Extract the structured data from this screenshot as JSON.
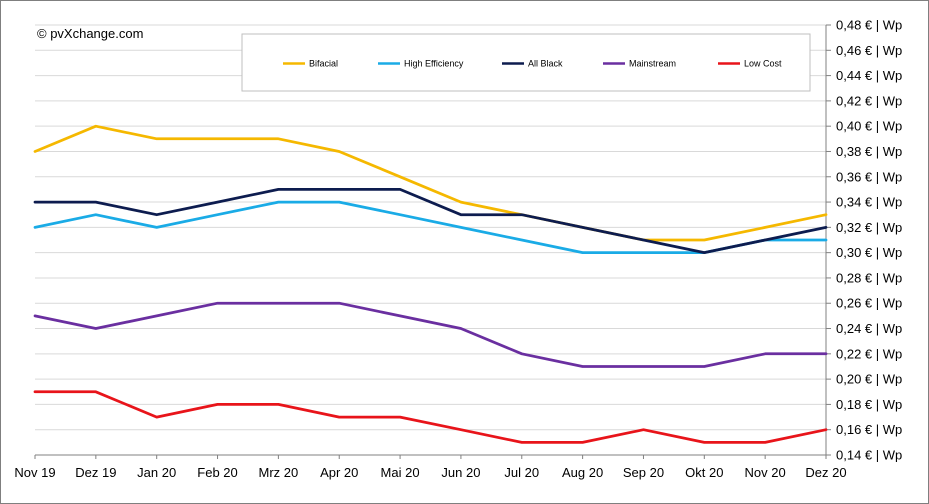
{
  "credit": "© pvXchange.com",
  "chart_data": {
    "type": "line",
    "title": "",
    "xlabel": "",
    "ylabel": "",
    "categories": [
      "Nov 19",
      "Dez 19",
      "Jan 20",
      "Feb 20",
      "Mrz 20",
      "Apr 20",
      "Mai 20",
      "Jun 20",
      "Jul 20",
      "Aug 20",
      "Sep 20",
      "Okt 20",
      "Nov 20",
      "Dez 20"
    ],
    "ylim": [
      0.14,
      0.48
    ],
    "ytick_step": 0.02,
    "y_tick_labels": [
      "0,14 € | Wp",
      "0,16 € | Wp",
      "0,18 € | Wp",
      "0,20 € | Wp",
      "0,22 € | Wp",
      "0,24 € | Wp",
      "0,26 € | Wp",
      "0,28 € | Wp",
      "0,30 € | Wp",
      "0,32 € | Wp",
      "0,34 € | Wp",
      "0,36 € | Wp",
      "0,38 € | Wp",
      "0,40 € | Wp",
      "0,42 € | Wp",
      "0,44 € | Wp",
      "0,46 € | Wp",
      "0,48 € | Wp"
    ],
    "y_axis_side": "right",
    "grid": true,
    "legend_position": "top",
    "series": [
      {
        "name": "Bifacial",
        "color": "#F5B800",
        "values": [
          0.38,
          0.4,
          0.39,
          0.39,
          0.39,
          0.38,
          0.36,
          0.34,
          0.33,
          0.32,
          0.31,
          0.31,
          0.32,
          0.33
        ]
      },
      {
        "name": "High Efficiency",
        "color": "#1AABE6",
        "values": [
          0.32,
          0.33,
          0.32,
          0.33,
          0.34,
          0.34,
          0.33,
          0.32,
          0.31,
          0.3,
          0.3,
          0.3,
          0.31,
          0.31
        ]
      },
      {
        "name": "All Black",
        "color": "#0D1C4F",
        "values": [
          0.34,
          0.34,
          0.33,
          0.34,
          0.35,
          0.35,
          0.35,
          0.33,
          0.33,
          0.32,
          0.31,
          0.3,
          0.31,
          0.32
        ]
      },
      {
        "name": "Mainstream",
        "color": "#6A2FA0",
        "values": [
          0.25,
          0.24,
          0.25,
          0.26,
          0.26,
          0.26,
          0.25,
          0.24,
          0.22,
          0.21,
          0.21,
          0.21,
          0.22,
          0.22
        ]
      },
      {
        "name": "Low Cost",
        "color": "#E8141A",
        "values": [
          0.19,
          0.19,
          0.17,
          0.18,
          0.18,
          0.17,
          0.17,
          0.16,
          0.15,
          0.15,
          0.16,
          0.15,
          0.15,
          0.16
        ]
      }
    ]
  }
}
